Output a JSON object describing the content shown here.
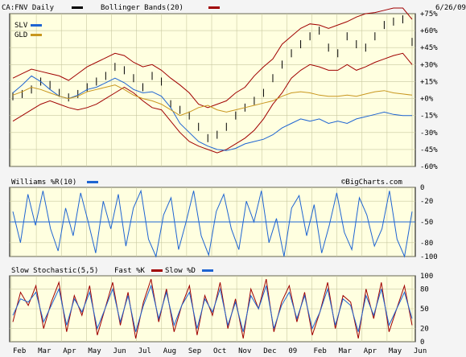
{
  "chart_data": [
    {
      "type": "line",
      "panel": "price",
      "title": "CA:FNV Daily",
      "date": "6/26/09",
      "legend": [
        {
          "label": "CA:FNV Daily",
          "color": "#000000"
        },
        {
          "label": "Bollinger Bands(20)",
          "color": "#a00000"
        },
        {
          "label": "SLV",
          "color": "#1e64d2"
        },
        {
          "label": "GLD",
          "color": "#c8961e"
        }
      ],
      "y_ticks": [
        "+75%",
        "+60%",
        "+45%",
        "+30%",
        "+15%",
        "+0%",
        "-15%",
        "-30%",
        "-45%",
        "-60%"
      ],
      "ylim": [
        -60,
        75
      ],
      "series": [
        {
          "name": "CA:FNV Daily",
          "style": "ohlc",
          "values": [
            2,
            4,
            8,
            15,
            12,
            5,
            1,
            4,
            10,
            15,
            20,
            28,
            25,
            18,
            10,
            20,
            15,
            -5,
            -10,
            -15,
            -25,
            -35,
            -32,
            -25,
            -15,
            -8,
            -2,
            5,
            18,
            30,
            40,
            48,
            55,
            60,
            45,
            40,
            55,
            48,
            45,
            55,
            65,
            68,
            70,
            50
          ]
        },
        {
          "name": "Bollinger upper",
          "values": [
            18,
            22,
            26,
            24,
            22,
            20,
            16,
            22,
            28,
            32,
            36,
            40,
            38,
            32,
            28,
            30,
            25,
            18,
            12,
            5,
            -5,
            -8,
            -5,
            -2,
            5,
            10,
            20,
            28,
            35,
            48,
            55,
            62,
            66,
            65,
            62,
            65,
            68,
            72,
            75,
            76,
            78,
            80,
            80,
            70
          ]
        },
        {
          "name": "Bollinger lower",
          "values": [
            -20,
            -15,
            -10,
            -5,
            -2,
            -5,
            -8,
            -10,
            -8,
            -5,
            0,
            5,
            10,
            5,
            -2,
            -8,
            -10,
            -20,
            -30,
            -38,
            -42,
            -45,
            -48,
            -45,
            -40,
            -35,
            -28,
            -18,
            -5,
            5,
            18,
            25,
            30,
            28,
            25,
            25,
            30,
            25,
            28,
            32,
            35,
            38,
            40,
            30
          ]
        },
        {
          "name": "SLV",
          "values": [
            5,
            12,
            20,
            15,
            8,
            2,
            0,
            3,
            8,
            10,
            14,
            18,
            14,
            8,
            5,
            6,
            2,
            -8,
            -22,
            -30,
            -38,
            -42,
            -45,
            -46,
            -44,
            -40,
            -38,
            -36,
            -32,
            -26,
            -22,
            -18,
            -20,
            -18,
            -22,
            -20,
            -22,
            -18,
            -16,
            -14,
            -12,
            -14,
            -15,
            -15
          ]
        },
        {
          "name": "GLD",
          "values": [
            3,
            6,
            10,
            8,
            5,
            2,
            0,
            2,
            6,
            8,
            10,
            12,
            8,
            3,
            0,
            -2,
            -5,
            -10,
            -15,
            -12,
            -8,
            -6,
            -10,
            -12,
            -10,
            -8,
            -6,
            -4,
            -2,
            2,
            5,
            6,
            5,
            3,
            2,
            2,
            3,
            2,
            4,
            6,
            7,
            5,
            4,
            3
          ]
        }
      ]
    },
    {
      "type": "line",
      "panel": "williams",
      "title": "Williams %R(10)",
      "watermark": "©BigCharts.com",
      "y_ticks": [
        "0",
        "-20",
        "-50",
        "-80",
        "-100"
      ],
      "ylim": [
        -100,
        0
      ],
      "reference_line": -50,
      "series": [
        {
          "name": "Williams %R(10)",
          "values": [
            -35,
            -80,
            -10,
            -55,
            -5,
            -60,
            -92,
            -30,
            -70,
            -8,
            -50,
            -95,
            -20,
            -60,
            -10,
            -85,
            -30,
            -5,
            -75,
            -100,
            -40,
            -15,
            -90,
            -50,
            -5,
            -70,
            -98,
            -35,
            -10,
            -60,
            -90,
            -20,
            -50,
            -5,
            -80,
            -45,
            -100,
            -30,
            -12,
            -70,
            -25,
            -95,
            -55,
            -8,
            -65,
            -90,
            -15,
            -40,
            -85,
            -60,
            -5,
            -75,
            -100,
            -35
          ]
        }
      ]
    },
    {
      "type": "line",
      "panel": "stochastic",
      "title": "Slow Stochastic(5,5)",
      "legend": [
        {
          "label": "Slow Stochastic(5,5)",
          "color": "#000000"
        },
        {
          "label": "Fast %K",
          "color": "#a00000"
        },
        {
          "label": "Slow %D",
          "color": "#1e64d2"
        }
      ],
      "y_ticks": [
        "100",
        "80",
        "50",
        "20",
        "0"
      ],
      "ylim": [
        0,
        100
      ],
      "x_ticks": [
        "Feb",
        "Mar",
        "Apr",
        "May",
        "Jun",
        "Jul",
        "Aug",
        "Sep",
        "Oct",
        "Nov",
        "Dec",
        "09",
        "Feb",
        "Mar",
        "Apr",
        "May",
        "Jun"
      ],
      "series": [
        {
          "name": "Fast %K",
          "values": [
            30,
            75,
            55,
            85,
            20,
            60,
            90,
            15,
            70,
            40,
            85,
            10,
            50,
            90,
            25,
            75,
            5,
            60,
            95,
            30,
            80,
            15,
            55,
            85,
            10,
            70,
            40,
            90,
            20,
            65,
            5,
            80,
            50,
            95,
            15,
            60,
            85,
            30,
            75,
            10,
            45,
            90,
            20,
            70,
            60,
            5,
            80,
            35,
            90,
            15,
            50,
            85,
            25
          ]
        },
        {
          "name": "Slow %D",
          "values": [
            40,
            65,
            60,
            75,
            30,
            55,
            80,
            25,
            65,
            45,
            75,
            20,
            50,
            80,
            30,
            70,
            15,
            55,
            85,
            35,
            75,
            25,
            55,
            75,
            20,
            65,
            45,
            80,
            25,
            60,
            15,
            70,
            50,
            85,
            20,
            55,
            75,
            35,
            70,
            20,
            45,
            80,
            25,
            65,
            55,
            15,
            70,
            40,
            80,
            25,
            50,
            75,
            35
          ]
        }
      ]
    }
  ]
}
